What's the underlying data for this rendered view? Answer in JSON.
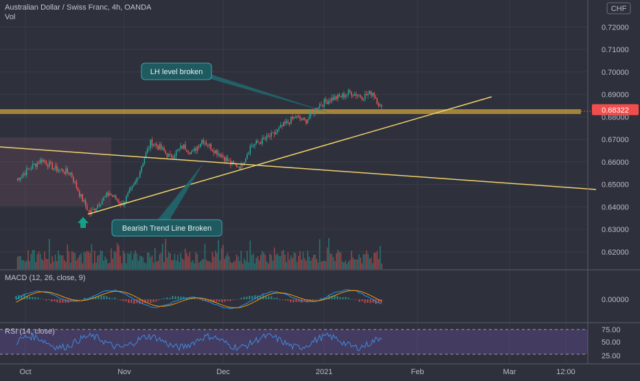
{
  "header": {
    "symbol_title": "Australian Dollar / Swiss Franc, 4h, OANDA",
    "volume_label": "Vol"
  },
  "price_axis": {
    "currency": "CHF",
    "ticks": [
      "0.72000",
      "0.71000",
      "0.70000",
      "0.69000",
      "0.68000",
      "0.67000",
      "0.66000",
      "0.65000",
      "0.64000",
      "0.63000",
      "0.62000"
    ],
    "last_price": "0.68322",
    "last_price_color": "#f04d4d"
  },
  "time_axis": {
    "ticks": [
      "Oct",
      "Nov",
      "Dec",
      "2021",
      "Feb",
      "Mar",
      "12:00"
    ]
  },
  "annotations": {
    "lh_level": "LH level broken",
    "bearish_trend": "Bearish Trend Line Broken"
  },
  "macd": {
    "label": "MACD (12, 26, close, 9)",
    "ticks": [
      "0.00000"
    ]
  },
  "rsi": {
    "label": "RSI (14, close)",
    "ticks": [
      "75.00",
      "50.00",
      "25.00"
    ]
  },
  "chart_data": {
    "type": "line",
    "title": "Australian Dollar / Swiss Franc, 4h, OANDA",
    "series": [
      {
        "name": "AUD/CHF",
        "x": [
          "2020-09-25",
          "2020-09-30",
          "2020-10-03",
          "2020-10-07",
          "2020-10-12",
          "2020-10-15",
          "2020-10-18",
          "2020-10-21",
          "2020-10-24",
          "2020-10-28",
          "2020-11-01",
          "2020-11-04",
          "2020-11-06",
          "2020-11-09",
          "2020-11-12",
          "2020-11-16",
          "2020-11-19",
          "2020-11-22",
          "2020-11-25",
          "2020-11-28",
          "2020-12-01",
          "2020-12-04",
          "2020-12-07",
          "2020-12-10",
          "2020-12-14",
          "2020-12-17",
          "2020-12-21",
          "2020-12-24",
          "2020-12-28",
          "2021-01-01",
          "2021-01-04",
          "2021-01-07",
          "2021-01-11",
          "2021-01-14",
          "2021-01-17"
        ],
        "values": [
          0.652,
          0.658,
          0.661,
          0.657,
          0.655,
          0.645,
          0.637,
          0.642,
          0.646,
          0.641,
          0.65,
          0.662,
          0.669,
          0.666,
          0.662,
          0.667,
          0.664,
          0.67,
          0.666,
          0.663,
          0.659,
          0.658,
          0.667,
          0.669,
          0.672,
          0.676,
          0.68,
          0.678,
          0.685,
          0.688,
          0.689,
          0.691,
          0.689,
          0.691,
          0.683
        ]
      }
    ],
    "horizontal_level": 0.6825,
    "ylim": [
      0.612,
      0.732
    ],
    "xlim": [
      "2020-09-20",
      "2021-03-22"
    ],
    "grid": true,
    "macd_zero": 0.0,
    "rsi_levels": [
      25,
      50,
      75
    ],
    "colors": {
      "up": "#26a69a",
      "down": "#ef5350",
      "trend": "#f2d26b",
      "level": "#c9a23a",
      "macd": "#2196f3",
      "signal": "#ff9800",
      "rsi": "#3f8be0",
      "rsi_band": "#7e57c2"
    }
  }
}
